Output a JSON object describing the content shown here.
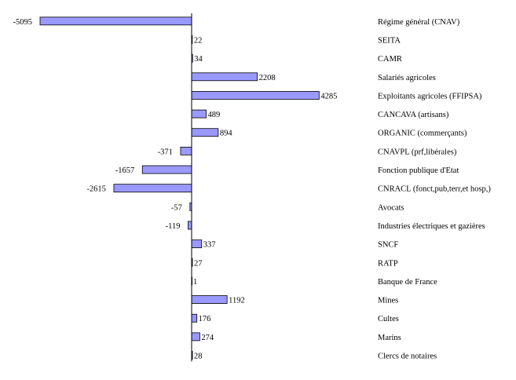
{
  "chart_data": {
    "type": "bar",
    "orientation": "horizontal",
    "title": "",
    "xlabel": "",
    "ylabel": "",
    "xlim": [
      -5095,
      4285
    ],
    "grid": false,
    "legend": "none",
    "bar_color": "#9999ff",
    "categories": [
      "Régime général (CNAV)",
      "SEITA",
      "CAMR",
      "Salariés agricoles",
      "Exploitants agricoles (FFIPSA)",
      "CANCAVA (artisans)",
      "ORGANIC (commerçants)",
      "CNAVPL (prf,libérales)",
      "Fonction publique d'Etat",
      "CNRACL (fonct,pub,terr,et hosp,)",
      "Avocats",
      "Industries électriques et gazières",
      "SNCF",
      "RATP",
      "Banque de France",
      "Mines",
      "Cultes",
      "Marins",
      "Clercs de notaires"
    ],
    "values": [
      -5095,
      22,
      34,
      2208,
      4285,
      489,
      894,
      -371,
      -1657,
      -2615,
      -57,
      -119,
      337,
      27,
      1,
      1192,
      176,
      274,
      28
    ]
  }
}
